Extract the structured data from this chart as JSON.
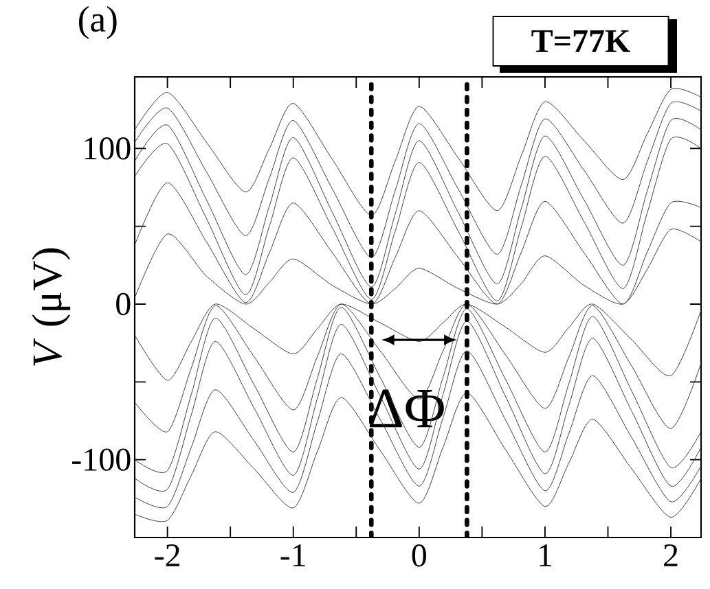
{
  "chart_data": {
    "type": "line",
    "ylabel": "*V* (μV)",
    "annotations": [
      "(a)",
      "T=77K",
      "ΔΦ"
    ],
    "xlim": [
      -2.26,
      2.24
    ],
    "ylim": [
      -150,
      146
    ],
    "xticks": [
      -2,
      {
        "value": -1.5,
        "label": null
      },
      -1,
      {
        "value": -0.5,
        "label": null
      },
      0,
      {
        "value": 0.5,
        "label": null
      },
      1,
      {
        "value": 1.5,
        "label": null
      },
      2
    ],
    "yticks": [
      -100,
      {
        "value": -50,
        "label": null
      },
      0,
      {
        "value": 50,
        "label": null
      },
      100
    ],
    "ref_lines": [
      {
        "axis": "x",
        "value": -0.38,
        "line_style": "dotted",
        "color": "#000000"
      },
      {
        "axis": "x",
        "value": 0.38,
        "line_style": "dotted",
        "color": "#000000"
      }
    ],
    "series": [
      {
        "color": "#333333",
        "x": [
          -2.26,
          -2,
          -1.69,
          -1.38,
          -1.19,
          -1,
          -0.69,
          -0.38,
          -0.19,
          0,
          0.31,
          0.62,
          0.81,
          1,
          1.31,
          1.62,
          1.81,
          2,
          2.24
        ],
        "values": [
          112,
          136,
          104,
          72,
          100,
          129,
          93,
          57,
          92,
          127,
          94,
          60,
          95,
          130,
          105,
          80,
          109,
          138,
          133
        ]
      },
      {
        "color": "#333333",
        "x": [
          -2.26,
          -2,
          -1.69,
          -1.38,
          -1.19,
          -1,
          -0.69,
          -0.38,
          -0.19,
          0,
          0.31,
          0.62,
          0.81,
          1,
          1.31,
          1.62,
          1.81,
          2,
          2.24
        ],
        "values": [
          104,
          126,
          85,
          44,
          81,
          118,
          74,
          30,
          73,
          116,
          74,
          32,
          76,
          119,
          86,
          52,
          91,
          129,
          124
        ]
      },
      {
        "color": "#333333",
        "x": [
          -2.26,
          -2,
          -1.69,
          -1.38,
          -1.19,
          -1,
          -0.69,
          -0.38,
          -0.19,
          0,
          0.31,
          0.62,
          0.81,
          1,
          1.31,
          1.62,
          1.81,
          2,
          2.24
        ],
        "values": [
          92,
          115,
          67,
          19,
          63,
          107,
          59,
          11,
          58,
          105,
          59,
          13,
          61,
          108,
          67,
          25,
          72,
          118,
          112
        ]
      },
      {
        "color": "#333333",
        "x": [
          -2.26,
          -2,
          -1.69,
          -1.38,
          -1.19,
          -1,
          -0.69,
          -0.38,
          -0.19,
          0,
          0.31,
          0.62,
          0.81,
          1,
          1.31,
          1.62,
          1.81,
          2,
          2.24
        ],
        "values": [
          82,
          103,
          55,
          6,
          50,
          94,
          49,
          3,
          47,
          91,
          47,
          2,
          49,
          95,
          53,
          10,
          58,
          106,
          100
        ]
      },
      {
        "color": "#333333",
        "x": [
          -2.26,
          -2,
          -1.69,
          -1.38,
          -1.19,
          -1,
          -0.69,
          -0.38,
          -0.19,
          0,
          0.31,
          0.62,
          0.81,
          1,
          1.31,
          1.62,
          1.81,
          2,
          2.24
        ],
        "values": [
          38,
          78,
          40,
          1,
          33,
          65,
          33,
          0,
          30,
          60,
          30,
          0,
          33,
          66,
          33,
          0,
          33,
          65,
          62
        ]
      },
      {
        "color": "#333333",
        "x": [
          -2.26,
          -2,
          -1.69,
          -1.38,
          -1.19,
          -1,
          -0.69,
          -0.38,
          -0.19,
          0,
          0.31,
          0.62,
          0.81,
          1,
          1.31,
          1.62,
          1.81,
          2,
          2.24
        ],
        "values": [
          4,
          45,
          18,
          0,
          14,
          29,
          12,
          0,
          10,
          23,
          10,
          0,
          13,
          31,
          12,
          0,
          22,
          48,
          40
        ]
      },
      {
        "color": "#333333",
        "x": [
          -2.26,
          -2,
          -1.81,
          -1.62,
          -1.31,
          -1,
          -0.81,
          -0.62,
          -0.31,
          0,
          0.19,
          0.38,
          0.69,
          1,
          1.19,
          1.38,
          1.69,
          2,
          2.24
        ],
        "values": [
          -135,
          -139,
          -110,
          -82,
          -106,
          -131,
          -95,
          -60,
          -94,
          -128,
          -92,
          -57,
          -94,
          -130,
          -102,
          -74,
          -106,
          -137,
          -112
        ]
      },
      {
        "color": "#333333",
        "x": [
          -2.26,
          -2,
          -1.81,
          -1.62,
          -1.31,
          -1,
          -0.81,
          -0.62,
          -0.31,
          0,
          0.19,
          0.38,
          0.69,
          1,
          1.19,
          1.38,
          1.69,
          2,
          2.24
        ],
        "values": [
          -124,
          -130,
          -92,
          -55,
          -88,
          -121,
          -76,
          -32,
          -74,
          -117,
          -73,
          -30,
          -75,
          -120,
          -83,
          -46,
          -86,
          -127,
          -104
        ]
      },
      {
        "color": "#333333",
        "x": [
          -2.26,
          -2,
          -1.81,
          -1.62,
          -1.31,
          -1,
          -0.81,
          -0.62,
          -0.31,
          0,
          0.19,
          0.38,
          0.69,
          1,
          1.19,
          1.38,
          1.69,
          2,
          2.24
        ],
        "values": [
          -112,
          -119,
          -71,
          -24,
          -67,
          -110,
          -61,
          -13,
          -59,
          -106,
          -58,
          -11,
          -60,
          -109,
          -65,
          -22,
          -69,
          -117,
          -92
        ]
      },
      {
        "color": "#333333",
        "x": [
          -2.26,
          -2,
          -1.81,
          -1.62,
          -1.31,
          -1,
          -0.81,
          -0.62,
          -0.31,
          0,
          0.19,
          0.38,
          0.69,
          1,
          1.19,
          1.38,
          1.69,
          2,
          2.24
        ],
        "values": [
          -100,
          -107,
          -58,
          -9,
          -52,
          -95,
          -48,
          -2,
          -47,
          -92,
          -47,
          -3,
          -49,
          -95,
          -51,
          -8,
          -56,
          -105,
          -82
        ]
      },
      {
        "color": "#333333",
        "x": [
          -2.26,
          -2,
          -1.81,
          -1.62,
          -1.31,
          -1,
          -0.81,
          -0.62,
          -0.31,
          0,
          0.19,
          0.38,
          0.69,
          1,
          1.19,
          1.38,
          1.69,
          2,
          2.24
        ],
        "values": [
          -63,
          -82,
          -41,
          -1,
          -34,
          -68,
          -34,
          0,
          -30,
          -61,
          -30,
          0,
          -33,
          -67,
          -34,
          -1,
          -40,
          -80,
          -38
        ]
      },
      {
        "color": "#333333",
        "x": [
          -2.26,
          -2,
          -1.81,
          -1.62,
          -1.31,
          -1,
          -0.81,
          -0.62,
          -0.31,
          0,
          0.19,
          0.38,
          0.69,
          1,
          1.19,
          1.38,
          1.69,
          2,
          2.24
        ],
        "values": [
          -20,
          -49,
          -24,
          0,
          -16,
          -32,
          -16,
          0,
          -12,
          -24,
          -12,
          0,
          -15,
          -31,
          -15,
          0,
          -23,
          -46,
          -4
        ]
      }
    ]
  }
}
